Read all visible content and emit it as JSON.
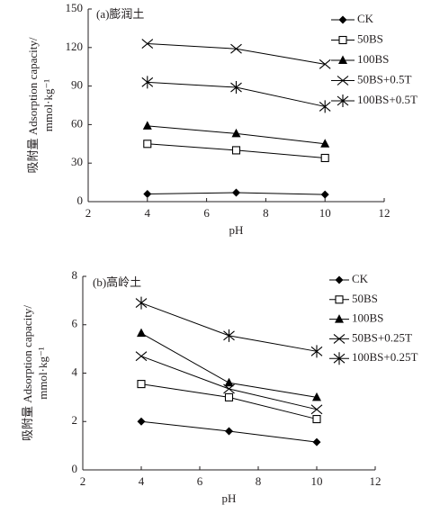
{
  "chart_data": [
    {
      "type": "line",
      "title": "(a)膨润土",
      "xlabel": "pH",
      "ylabel": [
        "吸附量 Adsorption capacity/",
        "mmol·kg⁻¹"
      ],
      "x": [
        4,
        7,
        10
      ],
      "xlim": [
        2,
        12
      ],
      "xticks": [
        2,
        4,
        6,
        8,
        10,
        12
      ],
      "ylim": [
        0,
        150
      ],
      "yticks": [
        0,
        30,
        60,
        90,
        120,
        150
      ],
      "series": [
        {
          "name": "CK",
          "color": "#000000",
          "marker": "diamond",
          "values": [
            6,
            7,
            5.5
          ]
        },
        {
          "name": "50BS",
          "color": "#000000",
          "marker": "square-open",
          "values": [
            45,
            40,
            34
          ]
        },
        {
          "name": "100BS",
          "color": "#000000",
          "marker": "triangle",
          "values": [
            59,
            53,
            45
          ]
        },
        {
          "name": "50BS+0.5T",
          "color": "#000000",
          "marker": "x",
          "values": [
            123,
            119,
            107
          ]
        },
        {
          "name": "100BS+0.5T",
          "color": "#000000",
          "marker": "asterisk",
          "values": [
            93,
            89,
            74
          ]
        }
      ]
    },
    {
      "type": "line",
      "title": "(b)高岭土",
      "xlabel": "pH",
      "ylabel": [
        "吸附量 Adsorption capacity/",
        "mmol·kg⁻¹"
      ],
      "x": [
        4,
        7,
        10
      ],
      "xlim": [
        2,
        12
      ],
      "xticks": [
        2,
        4,
        6,
        8,
        10,
        12
      ],
      "ylim": [
        0,
        8
      ],
      "yticks": [
        0,
        2,
        4,
        6,
        8
      ],
      "series": [
        {
          "name": "CK",
          "color": "#000000",
          "marker": "diamond",
          "values": [
            2.0,
            1.6,
            1.15
          ]
        },
        {
          "name": "50BS",
          "color": "#000000",
          "marker": "square-open",
          "values": [
            3.55,
            3.0,
            2.1
          ]
        },
        {
          "name": "100BS",
          "color": "#000000",
          "marker": "triangle",
          "values": [
            5.65,
            3.6,
            3.0
          ]
        },
        {
          "name": "50BS+0.25T",
          "color": "#000000",
          "marker": "x",
          "values": [
            4.7,
            3.35,
            2.5
          ]
        },
        {
          "name": "100BS+0.25T",
          "color": "#000000",
          "marker": "asterisk",
          "values": [
            6.9,
            5.55,
            4.9
          ]
        }
      ]
    }
  ]
}
